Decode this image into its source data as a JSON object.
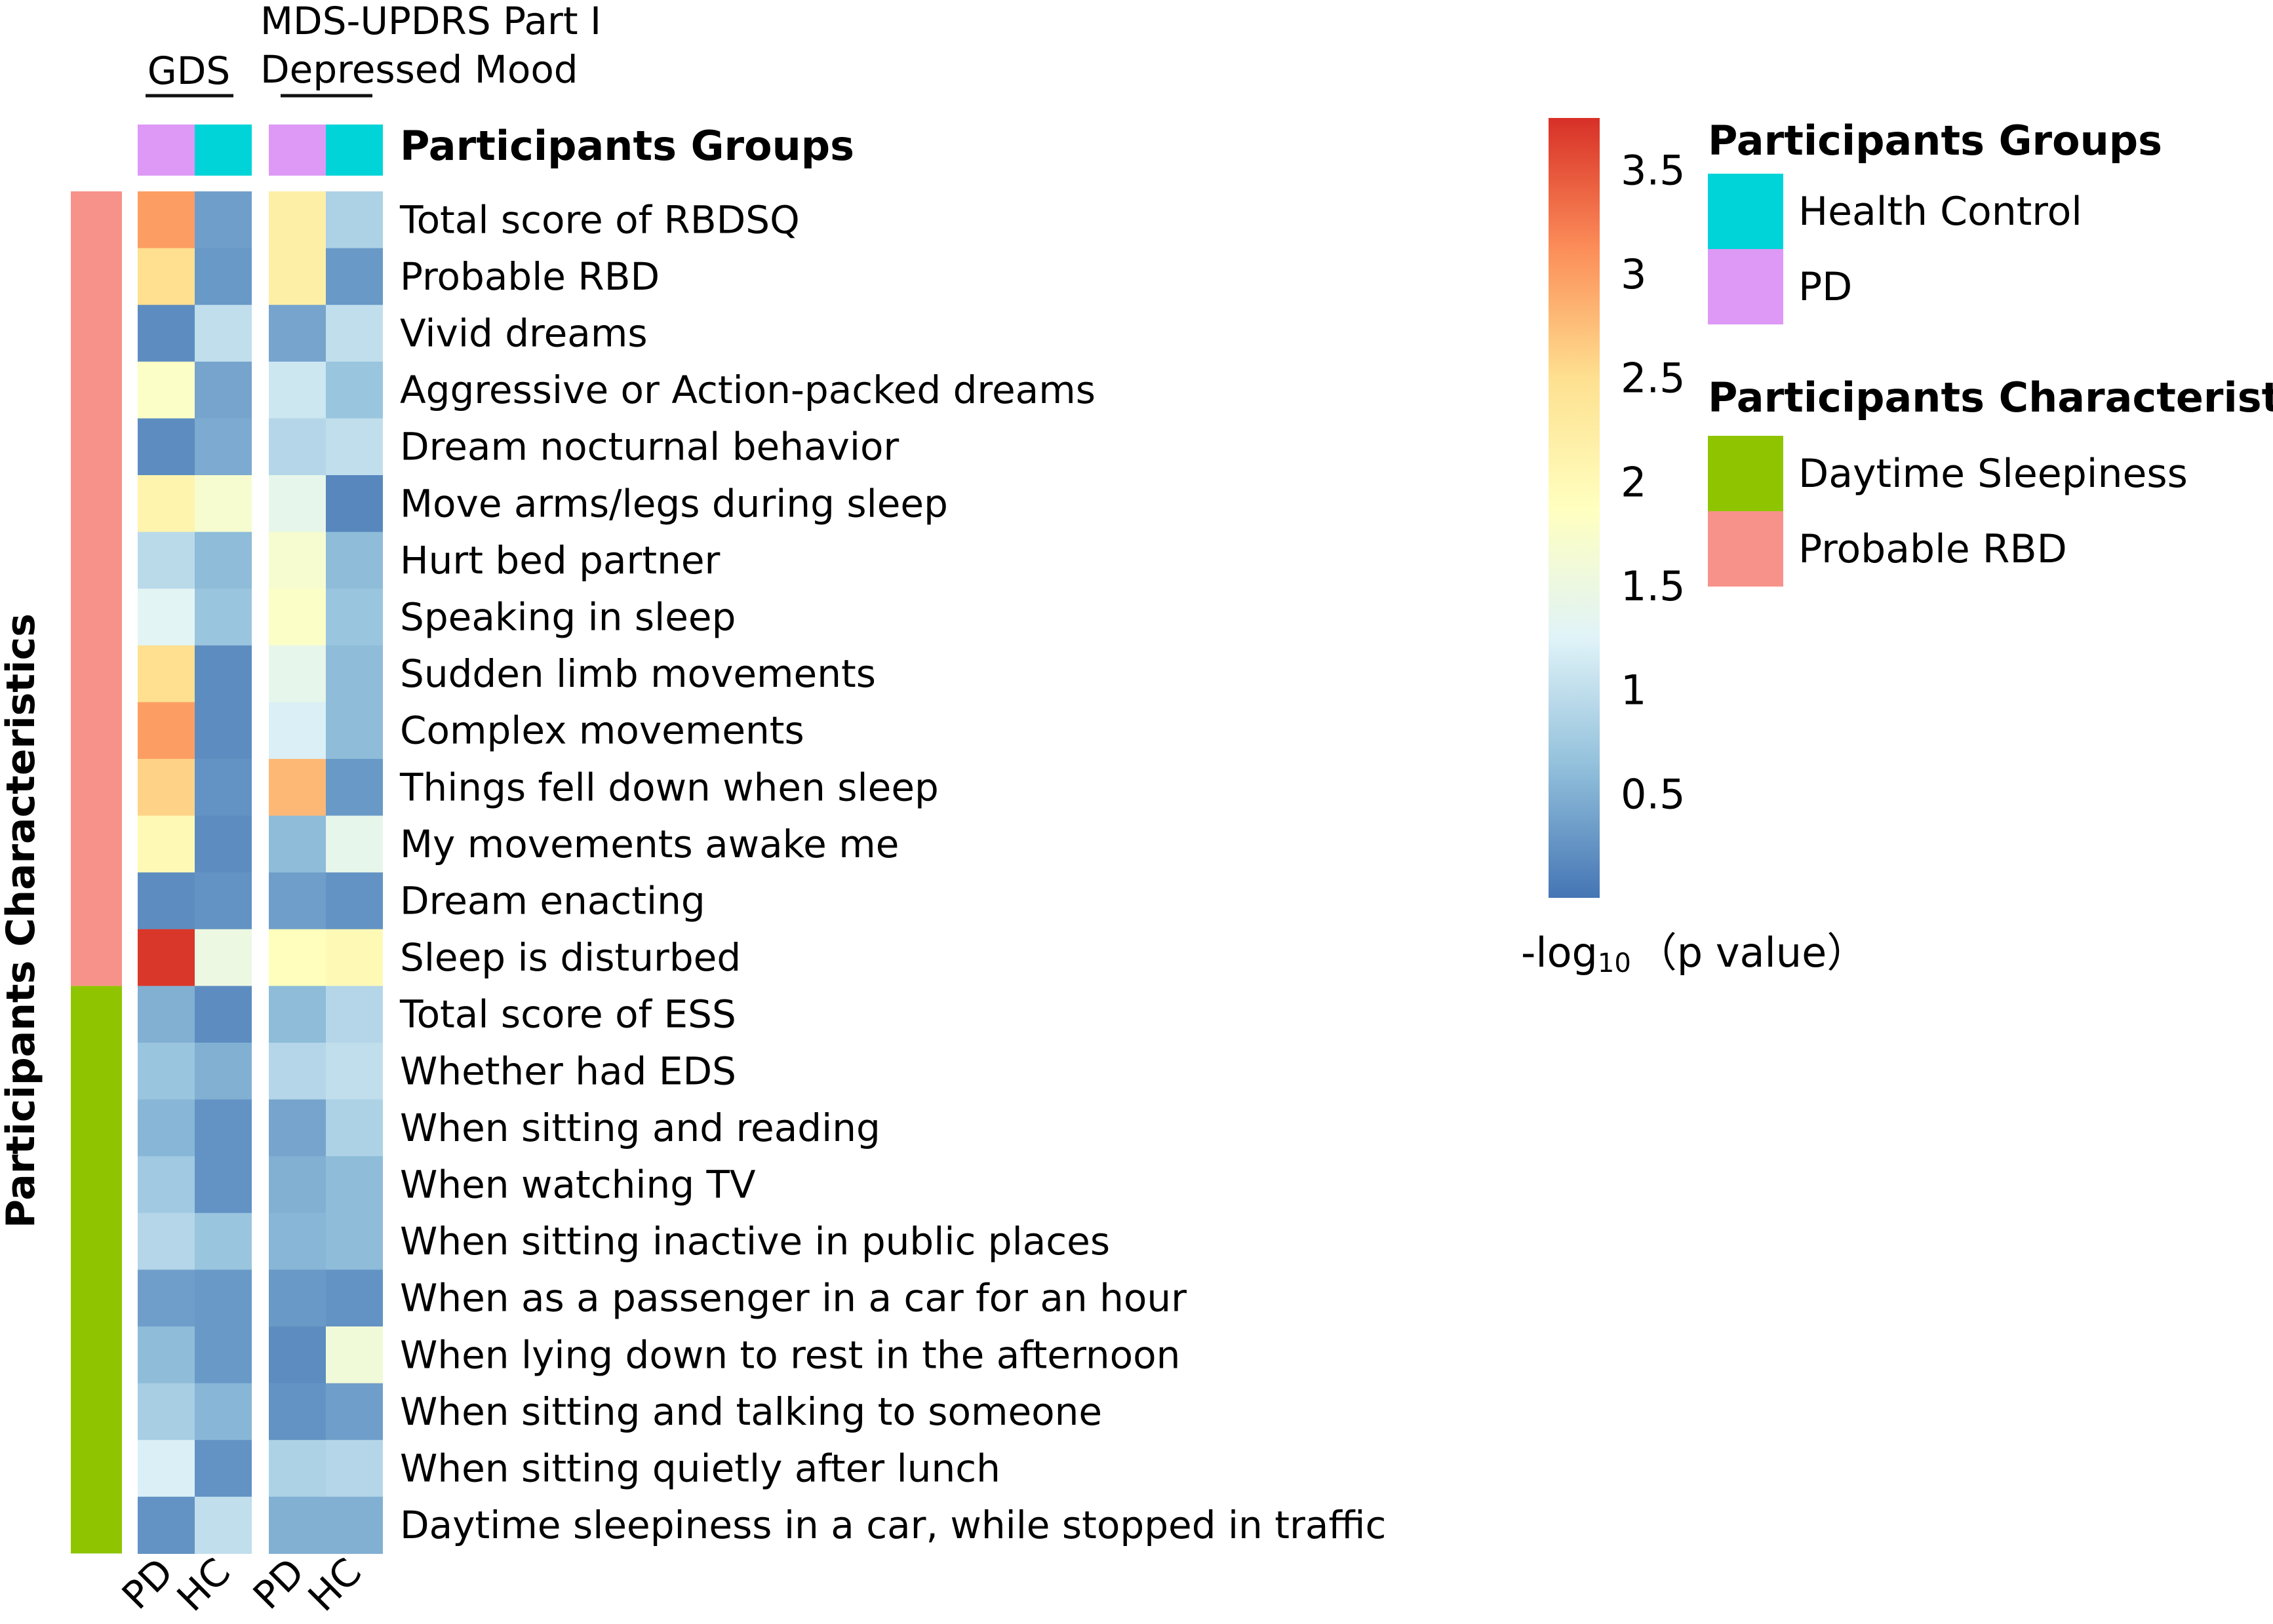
{
  "chart_data": {
    "type": "heatmap",
    "top_labels": {
      "gds": "GDS",
      "mds_line1": "MDS-UPDRS Part I",
      "mds_line2": "Depressed Mood"
    },
    "groups_row_label": "Participants Groups",
    "side_axis_label": "Participants Characteristics",
    "columns": [
      {
        "label": "PD",
        "group": "PD",
        "measure": "GDS"
      },
      {
        "label": "HC",
        "group": "Health Control",
        "measure": "GDS"
      },
      {
        "label": "PD",
        "group": "PD",
        "measure": "MDS-UPDRS Part I Depressed Mood"
      },
      {
        "label": "HC",
        "group": "Health Control",
        "measure": "MDS-UPDRS Part I Depressed Mood"
      }
    ],
    "rows": [
      {
        "label": "Total score of RBDSQ",
        "category": "Probable RBD",
        "values": [
          3.0,
          0.35,
          2.2,
          0.85
        ]
      },
      {
        "label": "Probable RBD",
        "category": "Probable RBD",
        "values": [
          2.5,
          0.3,
          2.2,
          0.3
        ]
      },
      {
        "label": "Vivid dreams",
        "category": "Probable RBD",
        "values": [
          0.2,
          1.0,
          0.4,
          1.0
        ]
      },
      {
        "label": "Aggressive or Action-packed dreams",
        "category": "Probable RBD",
        "values": [
          1.8,
          0.4,
          1.1,
          0.7
        ]
      },
      {
        "label": "Dream nocturnal behavior",
        "category": "Probable RBD",
        "values": [
          0.2,
          0.45,
          0.9,
          1.0
        ]
      },
      {
        "label": "Move arms/legs during sleep",
        "category": "Probable RBD",
        "values": [
          2.1,
          1.7,
          1.4,
          0.15
        ]
      },
      {
        "label": "Hurt bed partner",
        "category": "Probable RBD",
        "values": [
          0.95,
          0.6,
          1.7,
          0.6
        ]
      },
      {
        "label": "Speaking in sleep",
        "category": "Probable RBD",
        "values": [
          1.3,
          0.7,
          1.8,
          0.7
        ]
      },
      {
        "label": "Sudden limb movements",
        "category": "Probable RBD",
        "values": [
          2.5,
          0.2,
          1.4,
          0.6
        ]
      },
      {
        "label": "Complex movements",
        "category": "Probable RBD",
        "values": [
          3.0,
          0.2,
          1.2,
          0.6
        ]
      },
      {
        "label": "Things fell down when sleep",
        "category": "Probable RBD",
        "values": [
          2.6,
          0.25,
          2.8,
          0.3
        ]
      },
      {
        "label": "My movements awake me",
        "category": "Probable RBD",
        "values": [
          2.0,
          0.2,
          0.6,
          1.4
        ]
      },
      {
        "label": "Dream enacting",
        "category": "Probable RBD",
        "values": [
          0.2,
          0.25,
          0.35,
          0.25
        ]
      },
      {
        "label": "Sleep is disturbed",
        "category": "Probable RBD",
        "values": [
          3.7,
          1.5,
          1.9,
          2.0
        ]
      },
      {
        "label": "Total score of ESS",
        "category": "Daytime Sleepiness",
        "values": [
          0.5,
          0.2,
          0.6,
          0.9
        ]
      },
      {
        "label": "Whether had EDS",
        "category": "Daytime Sleepiness",
        "values": [
          0.7,
          0.5,
          0.9,
          1.0
        ]
      },
      {
        "label": "When sitting and reading",
        "category": "Daytime Sleepiness",
        "values": [
          0.55,
          0.25,
          0.4,
          0.85
        ]
      },
      {
        "label": "When watching TV",
        "category": "Daytime Sleepiness",
        "values": [
          0.75,
          0.25,
          0.5,
          0.6
        ]
      },
      {
        "label": "When sitting inactive in public places",
        "category": "Daytime Sleepiness",
        "values": [
          0.9,
          0.7,
          0.55,
          0.6
        ]
      },
      {
        "label": "When as a passenger in a car for an hour",
        "category": "Daytime Sleepiness",
        "values": [
          0.35,
          0.3,
          0.3,
          0.25
        ]
      },
      {
        "label": "When lying down to rest in the afternoon",
        "category": "Daytime Sleepiness",
        "values": [
          0.6,
          0.3,
          0.2,
          1.6
        ]
      },
      {
        "label": "When sitting and talking to someone",
        "category": "Daytime Sleepiness",
        "values": [
          0.8,
          0.55,
          0.25,
          0.35
        ]
      },
      {
        "label": "When sitting quietly after lunch",
        "category": "Daytime Sleepiness",
        "values": [
          1.2,
          0.25,
          0.85,
          0.9
        ]
      },
      {
        "label": "Daytime sleepiness in a car, while stopped in traffic",
        "category": "Daytime Sleepiness",
        "values": [
          0.25,
          1.0,
          0.5,
          0.5
        ]
      }
    ],
    "color_scale": {
      "min": 0,
      "max": 3.75,
      "ticks": [
        0.5,
        1,
        1.5,
        2,
        2.5,
        3,
        3.5
      ],
      "tick_labels": [
        "0.5",
        "1",
        "1.5",
        "2",
        "2.5",
        "3",
        "3.5"
      ],
      "stops": [
        "#4575b4",
        "#91bfdb",
        "#e0f3f8",
        "#ffffbf",
        "#fee090",
        "#fc8d59",
        "#d73027"
      ],
      "title_prefix": "-log",
      "title_subscript": "10",
      "title_suffix": "（p value）"
    },
    "legend": {
      "position": "right",
      "groups_title": "Participants Groups",
      "groups": [
        {
          "label": "Health Control",
          "color": "#00d4d8"
        },
        {
          "label": "PD",
          "color": "#dd99f5"
        }
      ],
      "characteristics_title": "Participants Characteristics",
      "characteristics": [
        {
          "label": "Daytime Sleepiness",
          "color": "#8fc500"
        },
        {
          "label": "Probable RBD",
          "color": "#f7928a"
        }
      ]
    }
  }
}
